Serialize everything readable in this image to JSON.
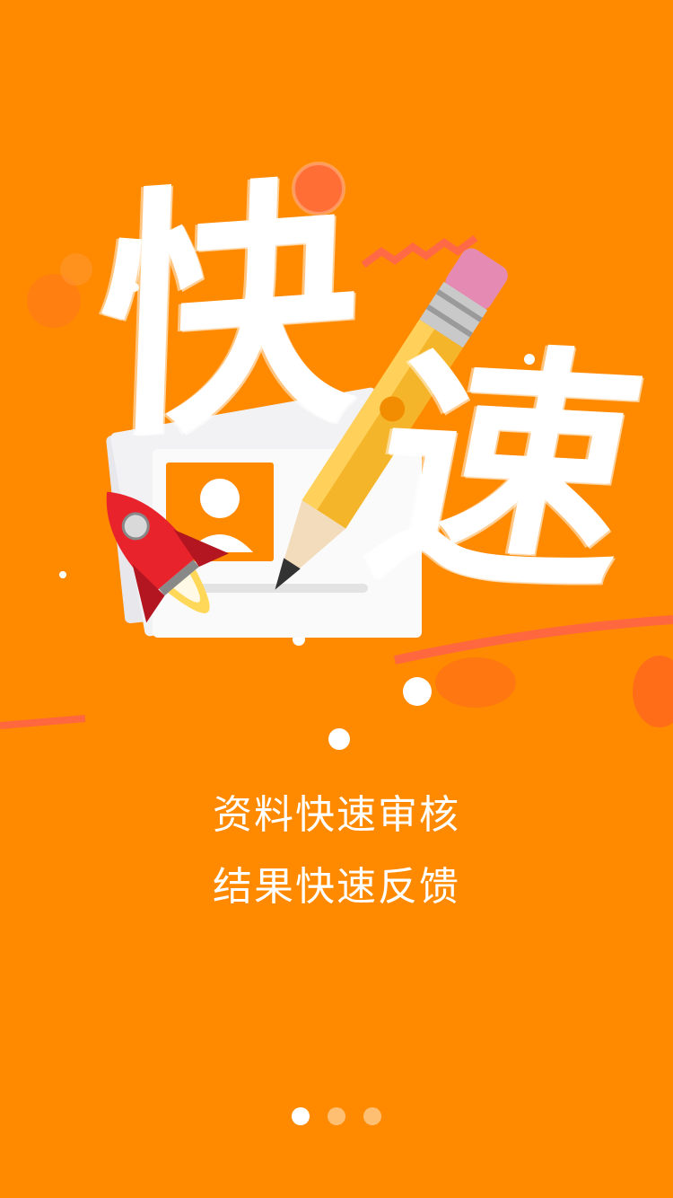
{
  "screen": {
    "background_color": "#ff8a00"
  },
  "hero": {
    "brush_chars": [
      "快",
      "速"
    ],
    "illustration": {
      "icons": [
        "rocket-icon",
        "pencil-icon",
        "profile-card-icon"
      ]
    }
  },
  "captions": [
    "资料快速审核",
    "结果快速反馈"
  ],
  "pager": {
    "total": 3,
    "active_index": 0
  }
}
